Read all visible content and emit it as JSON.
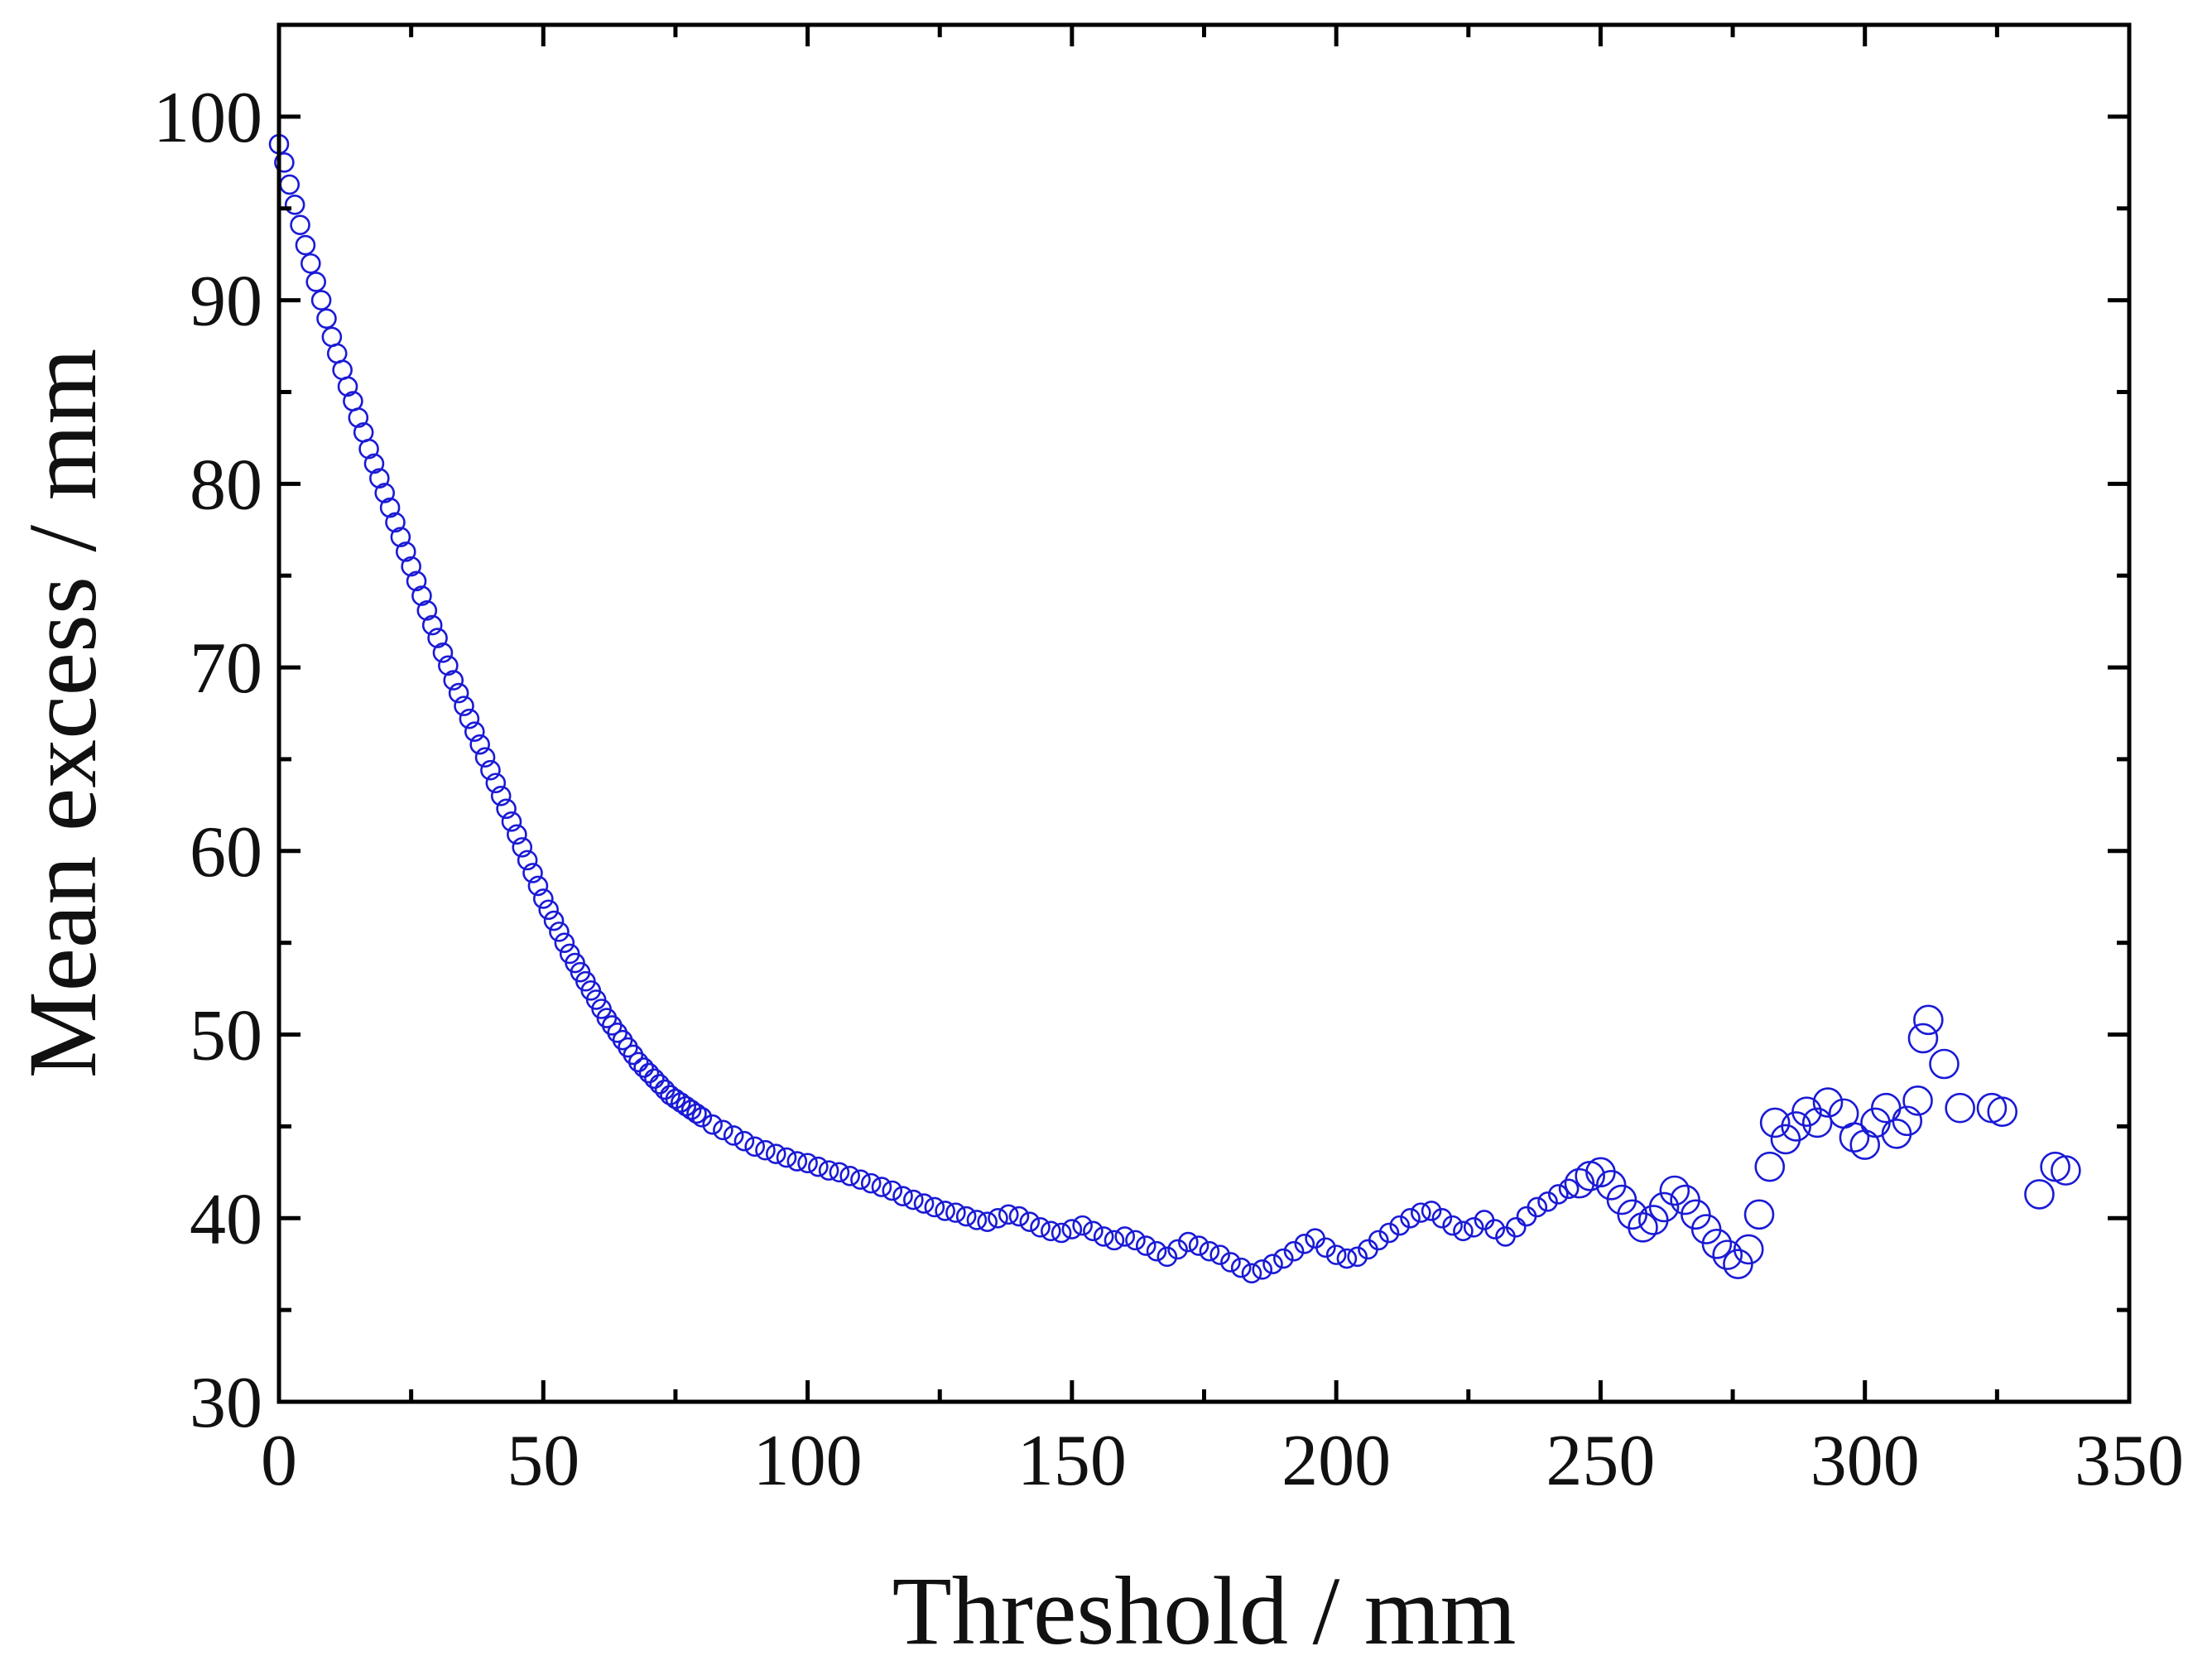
{
  "chart_data": {
    "type": "scatter",
    "title": "",
    "xlabel": "Threshold / mm",
    "ylabel": "Mean excess / mm",
    "xlim": [
      0,
      350
    ],
    "ylim": [
      30,
      105
    ],
    "x_ticks": [
      0,
      50,
      100,
      150,
      200,
      250,
      300,
      350
    ],
    "y_ticks": [
      30,
      40,
      50,
      60,
      70,
      80,
      90,
      100
    ],
    "grid": false,
    "legend": "none",
    "marker": "open-circle",
    "color": "#1a1ad6",
    "series": [
      {
        "name": "Mean excess",
        "points": [
          [
            0,
            98.5
          ],
          [
            1,
            97.5
          ],
          [
            2,
            96.3
          ],
          [
            3,
            95.2
          ],
          [
            4,
            94.1
          ],
          [
            5,
            93.0
          ],
          [
            6,
            92.0
          ],
          [
            7,
            91.0
          ],
          [
            8,
            90.0
          ],
          [
            9,
            89.0
          ],
          [
            10,
            88.0
          ],
          [
            11,
            87.1
          ],
          [
            12,
            86.2
          ],
          [
            13,
            85.3
          ],
          [
            14,
            84.5
          ],
          [
            15,
            83.6
          ],
          [
            16,
            82.8
          ],
          [
            17,
            81.9
          ],
          [
            18,
            81.1
          ],
          [
            19,
            80.3
          ],
          [
            20,
            79.5
          ],
          [
            21,
            78.7
          ],
          [
            22,
            77.9
          ],
          [
            23,
            77.1
          ],
          [
            24,
            76.3
          ],
          [
            25,
            75.5
          ],
          [
            26,
            74.7
          ],
          [
            27,
            73.9
          ],
          [
            28,
            73.1
          ],
          [
            29,
            72.3
          ],
          [
            30,
            71.6
          ],
          [
            31,
            70.8
          ],
          [
            32,
            70.1
          ],
          [
            33,
            69.3
          ],
          [
            34,
            68.6
          ],
          [
            35,
            67.9
          ],
          [
            36,
            67.2
          ],
          [
            37,
            66.5
          ],
          [
            38,
            65.8
          ],
          [
            39,
            65.1
          ],
          [
            40,
            64.4
          ],
          [
            41,
            63.7
          ],
          [
            42,
            63.0
          ],
          [
            43,
            62.3
          ],
          [
            44,
            61.6
          ],
          [
            45,
            60.9
          ],
          [
            46,
            60.2
          ],
          [
            47,
            59.5
          ],
          [
            48,
            58.8
          ],
          [
            49,
            58.1
          ],
          [
            50,
            57.4
          ],
          [
            51,
            56.8
          ],
          [
            52,
            56.2
          ],
          [
            53,
            55.6
          ],
          [
            54,
            55.0
          ],
          [
            55,
            54.4
          ],
          [
            56,
            53.9
          ],
          [
            57,
            53.4
          ],
          [
            58,
            52.9
          ],
          [
            59,
            52.4
          ],
          [
            60,
            51.9
          ],
          [
            61,
            51.4
          ],
          [
            62,
            50.9
          ],
          [
            63,
            50.5
          ],
          [
            64,
            50.1
          ],
          [
            65,
            49.7
          ],
          [
            66,
            49.3
          ],
          [
            67,
            48.9
          ],
          [
            68,
            48.5
          ],
          [
            69,
            48.2
          ],
          [
            70,
            47.9
          ],
          [
            71,
            47.6
          ],
          [
            72,
            47.3
          ],
          [
            73,
            47.0
          ],
          [
            74,
            46.7
          ],
          [
            75,
            46.5
          ],
          [
            76,
            46.3
          ],
          [
            77,
            46.1
          ],
          [
            78,
            45.9
          ],
          [
            79,
            45.7
          ],
          [
            80,
            45.5
          ],
          [
            82,
            45.1
          ],
          [
            84,
            44.8
          ],
          [
            86,
            44.5
          ],
          [
            88,
            44.2
          ],
          [
            90,
            43.9
          ],
          [
            92,
            43.7
          ],
          [
            94,
            43.5
          ],
          [
            96,
            43.3
          ],
          [
            98,
            43.1
          ],
          [
            100,
            43.0
          ],
          [
            102,
            42.8
          ],
          [
            104,
            42.6
          ],
          [
            106,
            42.5
          ],
          [
            108,
            42.3
          ],
          [
            110,
            42.1
          ],
          [
            112,
            41.9
          ],
          [
            114,
            41.7
          ],
          [
            116,
            41.5
          ],
          [
            118,
            41.2
          ],
          [
            120,
            41.0
          ],
          [
            122,
            40.8
          ],
          [
            124,
            40.6
          ],
          [
            126,
            40.4
          ],
          [
            128,
            40.3
          ],
          [
            130,
            40.1
          ],
          [
            132,
            39.9
          ],
          [
            134,
            39.8
          ],
          [
            136,
            40.0
          ],
          [
            138,
            40.2
          ],
          [
            140,
            40.1
          ],
          [
            142,
            39.8
          ],
          [
            144,
            39.5
          ],
          [
            146,
            39.3
          ],
          [
            148,
            39.2
          ],
          [
            150,
            39.4
          ],
          [
            152,
            39.6
          ],
          [
            154,
            39.3
          ],
          [
            156,
            39.0
          ],
          [
            158,
            38.8
          ],
          [
            160,
            39.0
          ],
          [
            162,
            38.8
          ],
          [
            164,
            38.5
          ],
          [
            166,
            38.2
          ],
          [
            168,
            37.9
          ],
          [
            170,
            38.3
          ],
          [
            172,
            38.7
          ],
          [
            174,
            38.5
          ],
          [
            176,
            38.2
          ],
          [
            178,
            38.0
          ],
          [
            180,
            37.6
          ],
          [
            182,
            37.3
          ],
          [
            184,
            37.0
          ],
          [
            186,
            37.2
          ],
          [
            188,
            37.5
          ],
          [
            190,
            37.8
          ],
          [
            192,
            38.2
          ],
          [
            194,
            38.6
          ],
          [
            196,
            38.9
          ],
          [
            198,
            38.4
          ],
          [
            200,
            38.0
          ],
          [
            202,
            37.8
          ],
          [
            204,
            37.9
          ],
          [
            206,
            38.3
          ],
          [
            208,
            38.8
          ],
          [
            210,
            39.2
          ],
          [
            212,
            39.6
          ],
          [
            214,
            40.0
          ],
          [
            216,
            40.3
          ],
          [
            218,
            40.4
          ],
          [
            220,
            40.0
          ],
          [
            222,
            39.6
          ],
          [
            224,
            39.3
          ],
          [
            226,
            39.5
          ],
          [
            228,
            39.9
          ],
          [
            230,
            39.4
          ],
          [
            232,
            39.0
          ],
          [
            234,
            39.5
          ],
          [
            236,
            40.1
          ],
          [
            238,
            40.6
          ],
          [
            240,
            40.9
          ],
          [
            242,
            41.3
          ],
          [
            244,
            41.6
          ],
          [
            246,
            41.9
          ],
          [
            248,
            42.3
          ],
          [
            250,
            42.5
          ],
          [
            252,
            41.8
          ],
          [
            254,
            41.0
          ],
          [
            256,
            40.2
          ],
          [
            258,
            39.5
          ],
          [
            260,
            39.9
          ],
          [
            262,
            40.6
          ],
          [
            264,
            41.5
          ],
          [
            266,
            41.0
          ],
          [
            268,
            40.2
          ],
          [
            270,
            39.4
          ],
          [
            272,
            38.6
          ],
          [
            274,
            38.0
          ],
          [
            276,
            37.5
          ],
          [
            278,
            38.3
          ],
          [
            280,
            40.2
          ],
          [
            282,
            42.8
          ],
          [
            283,
            45.2
          ],
          [
            285,
            44.3
          ],
          [
            287,
            45.0
          ],
          [
            289,
            45.8
          ],
          [
            291,
            45.2
          ],
          [
            293,
            46.3
          ],
          [
            296,
            45.7
          ],
          [
            298,
            44.4
          ],
          [
            300,
            44.0
          ],
          [
            302,
            45.2
          ],
          [
            304,
            46.0
          ],
          [
            306,
            44.6
          ],
          [
            308,
            45.3
          ],
          [
            310,
            46.4
          ],
          [
            311,
            49.8
          ],
          [
            312,
            50.8
          ],
          [
            315,
            48.4
          ],
          [
            318,
            46.0
          ],
          [
            324,
            46.0
          ],
          [
            326,
            45.8
          ],
          [
            333,
            41.3
          ],
          [
            336,
            42.8
          ],
          [
            338,
            42.6
          ]
        ]
      }
    ]
  }
}
